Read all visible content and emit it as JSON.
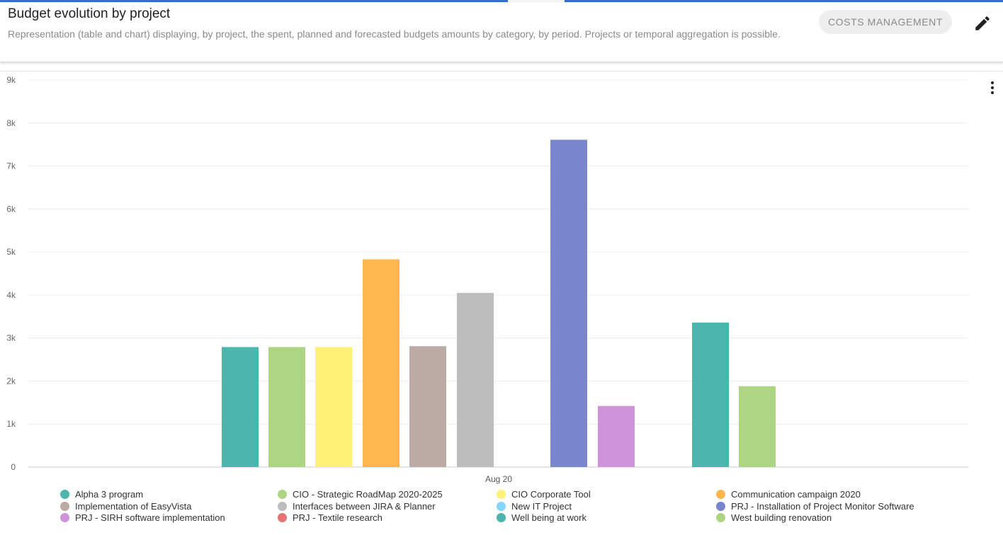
{
  "header": {
    "title": "Budget evolution by project",
    "description": "Representation (table and chart) displaying, by project, the spent, planned and forecasted budgets amounts by category, by period. Projects or temporal aggregation is possible.",
    "chip_label": "COSTS MANAGEMENT",
    "edit_icon": "pencil-icon",
    "menu_icon": "more-vert-icon"
  },
  "chart_data": {
    "type": "bar",
    "categories": [
      "Aug 20"
    ],
    "y_ticks": [
      "0",
      "1k",
      "2k",
      "3k",
      "4k",
      "5k",
      "6k",
      "7k",
      "8k",
      "9k"
    ],
    "ylim": [
      0,
      9000
    ],
    "grid": true,
    "legend_position": "bottom",
    "series": [
      {
        "name": "Alpha 3 program",
        "color": "#4db6ac",
        "values": [
          2790
        ]
      },
      {
        "name": "CIO - Strategic RoadMap 2020-2025",
        "color": "#aed581",
        "values": [
          2790
        ]
      },
      {
        "name": "CIO Corporate Tool",
        "color": "#fff176",
        "values": [
          2790
        ]
      },
      {
        "name": "Communication campaign 2020",
        "color": "#ffb74d",
        "values": [
          4830
        ]
      },
      {
        "name": "Implementation of EasyVista",
        "color": "#bcaaa4",
        "values": [
          2810
        ]
      },
      {
        "name": "Interfaces between JIRA & Planner",
        "color": "#bdbdbd",
        "values": [
          4050
        ]
      },
      {
        "name": "New IT Project",
        "color": "#81d4fa",
        "values": [
          0
        ]
      },
      {
        "name": "PRJ - Installation of Project Monitor Software",
        "color": "#7986cb",
        "values": [
          7610
        ]
      },
      {
        "name": "PRJ - SIRH software implementation",
        "color": "#ce93d8",
        "values": [
          1420
        ]
      },
      {
        "name": "PRJ - Textile research",
        "color": "#e57373",
        "values": [
          0
        ]
      },
      {
        "name": "Well being at work",
        "color": "#4db6ac",
        "values": [
          3360
        ]
      },
      {
        "name": "West building renovation",
        "color": "#aed581",
        "values": [
          1880
        ]
      }
    ]
  }
}
